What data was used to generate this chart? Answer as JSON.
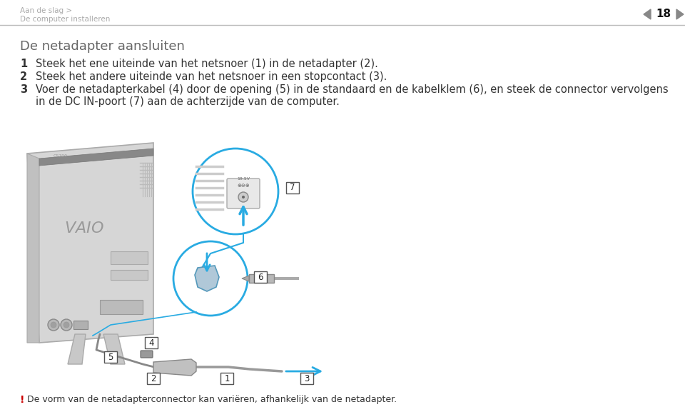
{
  "bg_color": "#ffffff",
  "header_line1": "Aan de slag >",
  "header_line2": "De computer installeren",
  "header_page": "18",
  "header_text_color": "#aaaaaa",
  "title": "De netadapter aansluiten",
  "title_color": "#666666",
  "title_fontsize": 13,
  "steps": [
    {
      "number": "1",
      "text": "Steek het ene uiteinde van het netsnoer (1) in de netadapter (2)."
    },
    {
      "number": "2",
      "text": "Steek het andere uiteinde van het netsnoer in een stopcontact (3)."
    },
    {
      "number": "3",
      "text": "Voer de netadapterkabel (4) door de opening (5) in de standaard en de kabelklem (6), en steek de connector vervolgens\nin de DC IN-poort (7) aan de achterzijde van de computer."
    }
  ],
  "step_text_color": "#333333",
  "step_fontsize": 10.5,
  "footer_exclamation": "!",
  "footer_exclamation_color": "#cc0000",
  "footer_text": "De vorm van de netadapterconnector kan variëren, afhankelijk van de netadapter.",
  "footer_text_color": "#333333",
  "footer_fontsize": 9,
  "separator_color": "#bbbbbb",
  "callout_color": "#29abe2",
  "monitor_body_color": "#d8d8d8",
  "monitor_edge_color": "#aaaaaa",
  "label_bg": "#ffffff",
  "label_border": "#555555"
}
